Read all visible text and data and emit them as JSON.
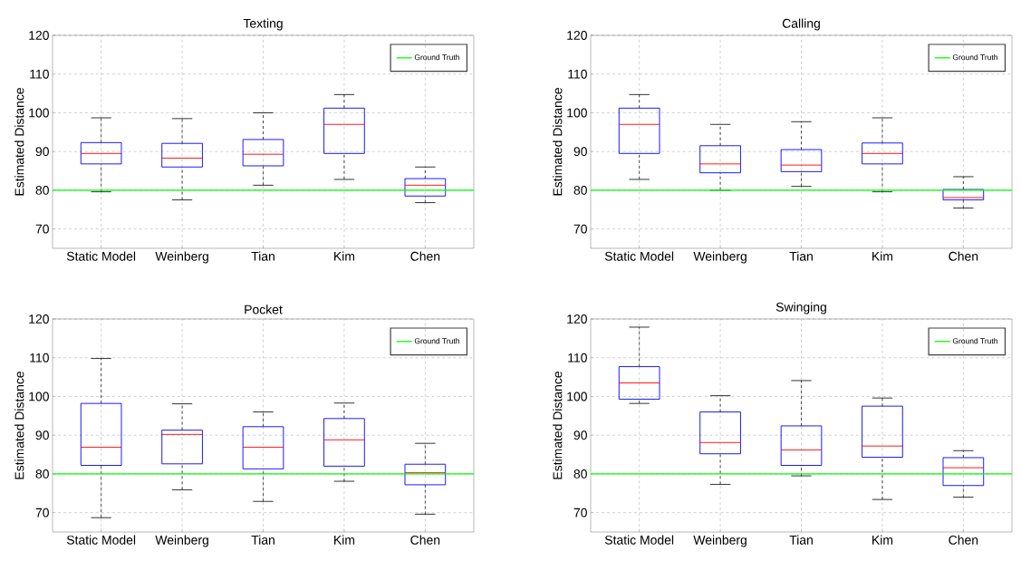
{
  "chart_data": [
    {
      "type": "box",
      "title": "Texting",
      "ylabel": "Estimated Distance",
      "categories": [
        "Static Model",
        "Weinberg",
        "Tian",
        "Kim",
        "Chen"
      ],
      "ylim": [
        65,
        120
      ],
      "yticks": [
        70,
        80,
        90,
        100,
        110,
        120
      ],
      "grid": true,
      "legend": "top right",
      "series": [
        {
          "color": "#0000ff",
          "boxes": [
            {
              "low": 79.6,
              "q1": 86.8,
              "median": 89.5,
              "q3": 92.3,
              "high": 98.7
            },
            {
              "low": 77.5,
              "q1": 86,
              "median": 88.3,
              "q3": 92.1,
              "high": 98.5
            },
            {
              "low": 81.3,
              "q1": 86.3,
              "median": 89.3,
              "q3": 93.1,
              "high": 100
            },
            {
              "low": 82.8,
              "q1": 89.5,
              "median": 97,
              "q3": 101.2,
              "high": 104.7
            },
            {
              "low": 76.8,
              "q1": 78.5,
              "median": 81.3,
              "q3": 83,
              "high": 86
            }
          ]
        }
      ],
      "ref_lines": [
        {
          "axis": "y",
          "value": 80,
          "label": "Ground Truth",
          "color": "#00ff00"
        }
      ]
    },
    {
      "type": "box",
      "title": "Calling",
      "ylabel": "Estimated Distance",
      "categories": [
        "Static Model",
        "Weinberg",
        "Tian",
        "Kim",
        "Chen"
      ],
      "ylim": [
        65,
        120
      ],
      "yticks": [
        70,
        80,
        90,
        100,
        110,
        120
      ],
      "grid": true,
      "legend": "top right",
      "series": [
        {
          "color": "#0000ff",
          "boxes": [
            {
              "low": 82.8,
              "q1": 89.5,
              "median": 97,
              "q3": 101.2,
              "high": 104.7
            },
            {
              "low": 80,
              "q1": 84.5,
              "median": 86.8,
              "q3": 91.5,
              "high": 97
            },
            {
              "low": 81,
              "q1": 84.8,
              "median": 86.5,
              "q3": 90.5,
              "high": 97.7
            },
            {
              "low": 79.6,
              "q1": 86.8,
              "median": 89.5,
              "q3": 92.2,
              "high": 98.7
            },
            {
              "low": 75.4,
              "q1": 77.5,
              "median": 78.1,
              "q3": 80.2,
              "high": 83.5
            }
          ]
        }
      ],
      "ref_lines": [
        {
          "axis": "y",
          "value": 80,
          "label": "Ground Truth",
          "color": "#00ff00"
        }
      ]
    },
    {
      "type": "box",
      "title": "Pocket",
      "ylabel": "Estimated Distance",
      "categories": [
        "Static Model",
        "Weinberg",
        "Tian",
        "Kim",
        "Chen"
      ],
      "ylim": [
        65,
        120
      ],
      "yticks": [
        70,
        80,
        90,
        100,
        110,
        120
      ],
      "grid": true,
      "legend": "top right",
      "series": [
        {
          "color": "#0000ff",
          "boxes": [
            {
              "low": 68.7,
              "q1": 82.2,
              "median": 86.9,
              "q3": 98.2,
              "high": 109.8
            },
            {
              "low": 75.9,
              "q1": 82.6,
              "median": 90.2,
              "q3": 91.3,
              "high": 98.1
            },
            {
              "low": 72.9,
              "q1": 81.3,
              "median": 86.9,
              "q3": 92.2,
              "high": 96
            },
            {
              "low": 78.1,
              "q1": 82,
              "median": 88.8,
              "q3": 94.3,
              "high": 98.3
            },
            {
              "low": 69.6,
              "q1": 77.2,
              "median": 80.3,
              "q3": 82.5,
              "high": 87.9
            }
          ]
        }
      ],
      "ref_lines": [
        {
          "axis": "y",
          "value": 80,
          "label": "Ground Truth",
          "color": "#00ff00"
        }
      ]
    },
    {
      "type": "box",
      "title": "Swinging",
      "ylabel": "Estimated Distance",
      "categories": [
        "Static Model",
        "Weinberg",
        "Tian",
        "Kim",
        "Chen"
      ],
      "ylim": [
        65,
        120
      ],
      "yticks": [
        70,
        80,
        90,
        100,
        110,
        120
      ],
      "grid": true,
      "legend": "top right",
      "series": [
        {
          "color": "#0000ff",
          "boxes": [
            {
              "low": 98.2,
              "q1": 99.3,
              "median": 103.5,
              "q3": 107.7,
              "high": 117.9
            },
            {
              "low": 77.3,
              "q1": 85.2,
              "median": 88.1,
              "q3": 96,
              "high": 100.2
            },
            {
              "low": 79.5,
              "q1": 82.2,
              "median": 86.2,
              "q3": 92.4,
              "high": 104.1
            },
            {
              "low": 73.4,
              "q1": 84.3,
              "median": 87.2,
              "q3": 97.5,
              "high": 99.6
            },
            {
              "low": 74,
              "q1": 77,
              "median": 81.6,
              "q3": 84.2,
              "high": 86
            }
          ]
        }
      ],
      "ref_lines": [
        {
          "axis": "y",
          "value": 80,
          "label": "Ground Truth",
          "color": "#00ff00"
        }
      ]
    }
  ]
}
